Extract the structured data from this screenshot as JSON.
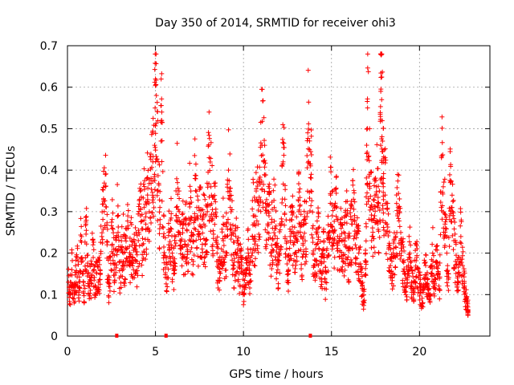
{
  "chart_data": {
    "type": "scatter",
    "title": "Day 350 of 2014, SRMTID for receiver ohi3",
    "xlabel": "GPS time / hours",
    "ylabel": "SRMTID / TECUs",
    "xlim": [
      0,
      24
    ],
    "ylim": [
      0,
      0.7
    ],
    "x_ticks": [
      "0",
      "5",
      "10",
      "15",
      "20"
    ],
    "y_ticks": [
      "0",
      "0.1",
      "0.2",
      "0.3",
      "0.4",
      "0.5",
      "0.6",
      "0.7"
    ],
    "grid": true,
    "marker": "plus",
    "series": [
      {
        "name": "SRMTID",
        "color": "#ff0000",
        "points": [
          [
            0.05,
            0.13
          ],
          [
            0.15,
            0.1
          ],
          [
            0.25,
            0.16
          ],
          [
            0.35,
            0.09
          ],
          [
            0.45,
            0.12
          ],
          [
            0.55,
            0.19
          ],
          [
            0.65,
            0.11
          ],
          [
            0.75,
            0.23
          ],
          [
            0.85,
            0.15
          ],
          [
            0.95,
            0.08
          ],
          [
            1.05,
            0.27
          ],
          [
            1.15,
            0.17
          ],
          [
            1.25,
            0.12
          ],
          [
            1.35,
            0.14
          ],
          [
            1.45,
            0.22
          ],
          [
            1.55,
            0.1
          ],
          [
            1.65,
            0.18
          ],
          [
            1.75,
            0.13
          ],
          [
            1.85,
            0.16
          ],
          [
            1.95,
            0.24
          ],
          [
            2.05,
            0.33
          ],
          [
            2.15,
            0.39
          ],
          [
            2.25,
            0.22
          ],
          [
            2.35,
            0.12
          ],
          [
            2.45,
            0.19
          ],
          [
            2.55,
            0.26
          ],
          [
            2.65,
            0.16
          ],
          [
            2.75,
            0.21
          ],
          [
            2.85,
            0.29
          ],
          [
            2.95,
            0.14
          ],
          [
            3.05,
            0.18
          ],
          [
            3.15,
            0.24
          ],
          [
            3.25,
            0.17
          ],
          [
            3.35,
            0.21
          ],
          [
            3.45,
            0.26
          ],
          [
            3.55,
            0.19
          ],
          [
            3.65,
            0.23
          ],
          [
            3.75,
            0.16
          ],
          [
            3.85,
            0.21
          ],
          [
            3.95,
            0.18
          ],
          [
            4.05,
            0.25
          ],
          [
            4.15,
            0.29
          ],
          [
            4.25,
            0.22
          ],
          [
            4.35,
            0.31
          ],
          [
            4.45,
            0.27
          ],
          [
            4.55,
            0.34
          ],
          [
            4.65,
            0.3
          ],
          [
            4.75,
            0.38
          ],
          [
            4.85,
            0.42
          ],
          [
            4.95,
            0.46
          ],
          [
            5.0,
            0.62
          ],
          [
            5.05,
            0.58
          ],
          [
            5.15,
            0.35
          ],
          [
            5.25,
            0.31
          ],
          [
            5.35,
            0.52
          ],
          [
            5.45,
            0.24
          ],
          [
            5.55,
            0.19
          ],
          [
            5.65,
            0.14
          ],
          [
            5.75,
            0.22
          ],
          [
            5.85,
            0.28
          ],
          [
            5.95,
            0.2
          ],
          [
            6.05,
            0.17
          ],
          [
            6.15,
            0.24
          ],
          [
            6.25,
            0.37
          ],
          [
            6.35,
            0.3
          ],
          [
            6.45,
            0.21
          ],
          [
            6.55,
            0.26
          ],
          [
            6.65,
            0.19
          ],
          [
            6.75,
            0.28
          ],
          [
            6.85,
            0.22
          ],
          [
            6.95,
            0.32
          ],
          [
            7.05,
            0.25
          ],
          [
            7.15,
            0.18
          ],
          [
            7.25,
            0.38
          ],
          [
            7.35,
            0.31
          ],
          [
            7.45,
            0.24
          ],
          [
            7.55,
            0.29
          ],
          [
            7.65,
            0.21
          ],
          [
            7.75,
            0.27
          ],
          [
            7.85,
            0.23
          ],
          [
            7.95,
            0.3
          ],
          [
            8.05,
            0.43
          ],
          [
            8.15,
            0.36
          ],
          [
            8.25,
            0.28
          ],
          [
            8.35,
            0.33
          ],
          [
            8.45,
            0.23
          ],
          [
            8.55,
            0.18
          ],
          [
            8.65,
            0.14
          ],
          [
            8.75,
            0.21
          ],
          [
            8.85,
            0.27
          ],
          [
            8.95,
            0.19
          ],
          [
            9.05,
            0.24
          ],
          [
            9.15,
            0.4
          ],
          [
            9.25,
            0.31
          ],
          [
            9.35,
            0.25
          ],
          [
            9.45,
            0.17
          ],
          [
            9.55,
            0.2
          ],
          [
            9.65,
            0.23
          ],
          [
            9.75,
            0.15
          ],
          [
            9.85,
            0.19
          ],
          [
            9.95,
            0.12
          ],
          [
            10.05,
            0.1
          ],
          [
            10.15,
            0.16
          ],
          [
            10.25,
            0.21
          ],
          [
            10.35,
            0.13
          ],
          [
            10.45,
            0.18
          ],
          [
            10.55,
            0.29
          ],
          [
            10.65,
            0.24
          ],
          [
            10.75,
            0.33
          ],
          [
            10.85,
            0.27
          ],
          [
            10.95,
            0.37
          ],
          [
            11.05,
            0.46
          ],
          [
            11.15,
            0.42
          ],
          [
            11.25,
            0.32
          ],
          [
            11.35,
            0.25
          ],
          [
            11.45,
            0.29
          ],
          [
            11.55,
            0.2
          ],
          [
            11.65,
            0.26
          ],
          [
            11.75,
            0.31
          ],
          [
            11.85,
            0.22
          ],
          [
            11.95,
            0.16
          ],
          [
            12.05,
            0.2
          ],
          [
            12.15,
            0.27
          ],
          [
            12.25,
            0.42
          ],
          [
            12.35,
            0.33
          ],
          [
            12.45,
            0.21
          ],
          [
            12.55,
            0.15
          ],
          [
            12.65,
            0.24
          ],
          [
            12.75,
            0.28
          ],
          [
            12.85,
            0.22
          ],
          [
            12.95,
            0.18
          ],
          [
            13.05,
            0.25
          ],
          [
            13.15,
            0.3
          ],
          [
            13.25,
            0.24
          ],
          [
            13.35,
            0.19
          ],
          [
            13.45,
            0.27
          ],
          [
            13.55,
            0.21
          ],
          [
            13.65,
            0.49
          ],
          [
            13.75,
            0.45
          ],
          [
            13.85,
            0.39
          ],
          [
            13.95,
            0.2
          ],
          [
            14.05,
            0.17
          ],
          [
            14.15,
            0.22
          ],
          [
            14.25,
            0.26
          ],
          [
            14.35,
            0.18
          ],
          [
            14.45,
            0.15
          ],
          [
            14.55,
            0.21
          ],
          [
            14.65,
            0.13
          ],
          [
            14.75,
            0.19
          ],
          [
            14.85,
            0.25
          ],
          [
            14.95,
            0.34
          ],
          [
            15.05,
            0.29
          ],
          [
            15.15,
            0.23
          ],
          [
            15.25,
            0.31
          ],
          [
            15.35,
            0.24
          ],
          [
            15.45,
            0.19
          ],
          [
            15.55,
            0.26
          ],
          [
            15.65,
            0.18
          ],
          [
            15.75,
            0.22
          ],
          [
            15.85,
            0.29
          ],
          [
            15.95,
            0.17
          ],
          [
            16.05,
            0.21
          ],
          [
            16.15,
            0.27
          ],
          [
            16.25,
            0.33
          ],
          [
            16.35,
            0.22
          ],
          [
            16.45,
            0.25
          ],
          [
            16.55,
            0.2
          ],
          [
            16.65,
            0.16
          ],
          [
            16.75,
            0.12
          ],
          [
            16.85,
            0.08
          ],
          [
            16.95,
            0.18
          ],
          [
            17.0,
            0.44
          ],
          [
            17.05,
            0.55
          ],
          [
            17.15,
            0.39
          ],
          [
            17.25,
            0.31
          ],
          [
            17.35,
            0.24
          ],
          [
            17.45,
            0.29
          ],
          [
            17.55,
            0.36
          ],
          [
            17.65,
            0.31
          ],
          [
            17.75,
            0.28
          ],
          [
            17.8,
            0.59
          ],
          [
            17.85,
            0.57
          ],
          [
            17.9,
            0.47
          ],
          [
            17.95,
            0.38
          ],
          [
            18.05,
            0.34
          ],
          [
            18.15,
            0.27
          ],
          [
            18.25,
            0.21
          ],
          [
            18.35,
            0.17
          ],
          [
            18.45,
            0.14
          ],
          [
            18.55,
            0.19
          ],
          [
            18.65,
            0.24
          ],
          [
            18.75,
            0.29
          ],
          [
            18.85,
            0.3
          ],
          [
            18.95,
            0.22
          ],
          [
            19.05,
            0.18
          ],
          [
            19.15,
            0.15
          ],
          [
            19.25,
            0.12
          ],
          [
            19.35,
            0.16
          ],
          [
            19.45,
            0.2
          ],
          [
            19.55,
            0.13
          ],
          [
            19.65,
            0.1
          ],
          [
            19.75,
            0.16
          ],
          [
            19.85,
            0.19
          ],
          [
            19.95,
            0.14
          ],
          [
            20.05,
            0.11
          ],
          [
            20.15,
            0.08
          ],
          [
            20.25,
            0.14
          ],
          [
            20.35,
            0.17
          ],
          [
            20.45,
            0.12
          ],
          [
            20.55,
            0.09
          ],
          [
            20.65,
            0.15
          ],
          [
            20.75,
            0.2
          ],
          [
            20.85,
            0.13
          ],
          [
            20.95,
            0.18
          ],
          [
            21.05,
            0.15
          ],
          [
            21.15,
            0.11
          ],
          [
            21.25,
            0.43
          ],
          [
            21.35,
            0.36
          ],
          [
            21.45,
            0.27
          ],
          [
            21.55,
            0.2
          ],
          [
            21.65,
            0.15
          ],
          [
            21.75,
            0.37
          ],
          [
            21.85,
            0.31
          ],
          [
            21.95,
            0.23
          ],
          [
            22.05,
            0.18
          ],
          [
            22.15,
            0.14
          ],
          [
            22.25,
            0.19
          ],
          [
            22.35,
            0.24
          ],
          [
            22.45,
            0.17
          ],
          [
            22.55,
            0.12
          ],
          [
            22.65,
            0.09
          ],
          [
            22.75,
            0.07
          ]
        ]
      }
    ],
    "zero_markers": [
      2.8,
      5.6,
      13.8
    ]
  }
}
